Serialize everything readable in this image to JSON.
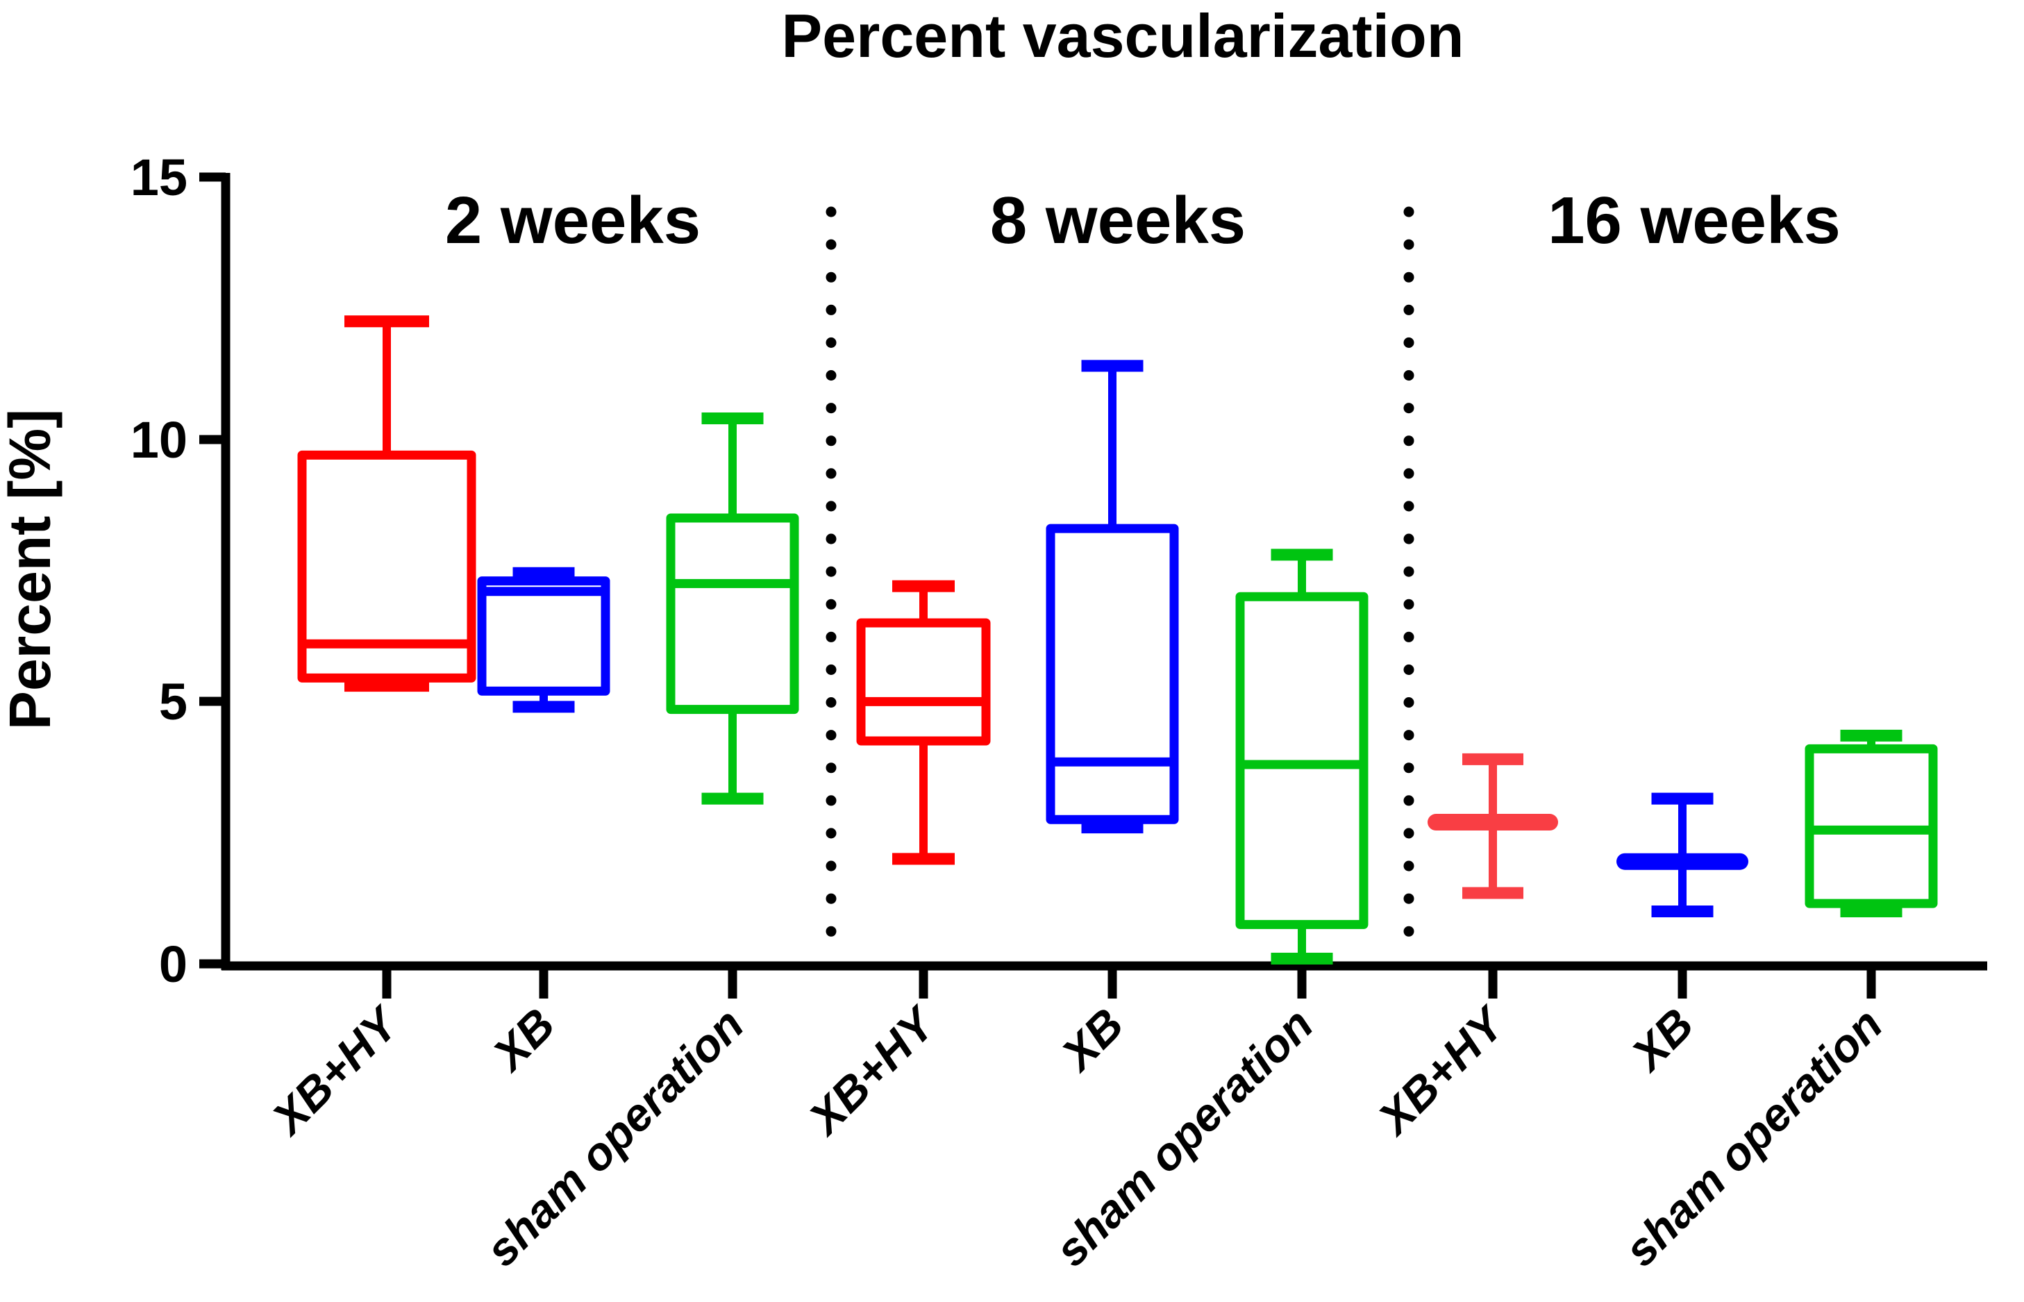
{
  "chart_data": {
    "type": "box",
    "title": "Percent vascularization",
    "ylabel": "Percent [%]",
    "ylim": [
      0,
      15
    ],
    "yticks": [
      0,
      5,
      10,
      15
    ],
    "ytick_labels": [
      "0",
      "5",
      "10",
      "15"
    ],
    "grid": false,
    "legend": "none",
    "colors": {
      "red": "#FF0000",
      "red_light": "#F93E44",
      "blue": "#0000FF",
      "green": "#00C411"
    },
    "groups": [
      {
        "label": "2 weeks",
        "boxes": [
          {
            "label": "XB+HY",
            "color": "#FF0000",
            "min": 5.3,
            "q1": 5.45,
            "median": 6.1,
            "q3": 9.7,
            "max": 12.25
          },
          {
            "label": "XB",
            "color": "#0000FF",
            "min": 4.9,
            "q1": 5.2,
            "median": 7.1,
            "q3": 7.3,
            "max": 7.45
          },
          {
            "label": "sham operation",
            "color": "#00C411",
            "min": 3.15,
            "q1": 4.85,
            "median": 7.25,
            "q3": 8.5,
            "max": 10.4
          }
        ]
      },
      {
        "label": "8 weeks",
        "boxes": [
          {
            "label": "XB+HY",
            "color": "#FF0000",
            "min": 2.0,
            "q1": 4.25,
            "median": 5.0,
            "q3": 6.5,
            "max": 7.2
          },
          {
            "label": "XB",
            "color": "#0000FF",
            "min": 2.6,
            "q1": 2.75,
            "median": 3.85,
            "q3": 8.3,
            "max": 11.4
          },
          {
            "label": "sham operation",
            "color": "#00C411",
            "min": 0.1,
            "q1": 0.75,
            "median": 3.8,
            "q3": 7.0,
            "max": 7.8
          }
        ]
      },
      {
        "label": "16 weeks",
        "boxes": [
          {
            "label": "XB+HY",
            "color": "#F93E44",
            "min": 1.35,
            "q1": 2.6,
            "median": 2.7,
            "q3": 2.75,
            "max": 3.9
          },
          {
            "label": "XB",
            "color": "#0000FF",
            "min": 1.0,
            "q1": 1.9,
            "median": 1.95,
            "q3": 2.0,
            "max": 3.15
          },
          {
            "label": "sham operation",
            "color": "#00C411",
            "min": 1.0,
            "q1": 1.15,
            "median": 2.55,
            "q3": 4.1,
            "max": 4.35
          }
        ]
      }
    ]
  }
}
